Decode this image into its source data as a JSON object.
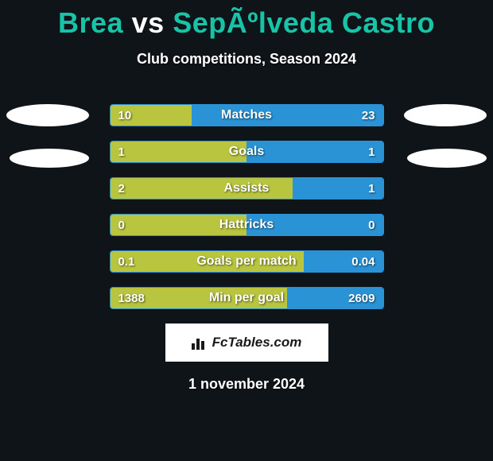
{
  "title": {
    "player1": "Brea",
    "vs": "vs",
    "player2": "SepÃºlveda Castro"
  },
  "subtitle": "Club competitions, Season 2024",
  "colors": {
    "background": "#0f1419",
    "accent_teal": "#18c4a8",
    "bar_left": "#b9c53e",
    "bar_right": "#2a93d6",
    "border": "#2a93d6",
    "text": "#ffffff"
  },
  "stats": [
    {
      "label": "Matches",
      "left_val": "10",
      "right_val": "23",
      "left_pct": 30,
      "right_pct": 70
    },
    {
      "label": "Goals",
      "left_val": "1",
      "right_val": "1",
      "left_pct": 50,
      "right_pct": 50
    },
    {
      "label": "Assists",
      "left_val": "2",
      "right_val": "1",
      "left_pct": 67,
      "right_pct": 33
    },
    {
      "label": "Hattricks",
      "left_val": "0",
      "right_val": "0",
      "left_pct": 50,
      "right_pct": 50
    },
    {
      "label": "Goals per match",
      "left_val": "0.1",
      "right_val": "0.04",
      "left_pct": 71,
      "right_pct": 29
    },
    {
      "label": "Min per goal",
      "left_val": "1388",
      "right_val": "2609",
      "left_pct": 65,
      "right_pct": 35
    }
  ],
  "logo_text": "FcTables.com",
  "date": "1 november 2024"
}
